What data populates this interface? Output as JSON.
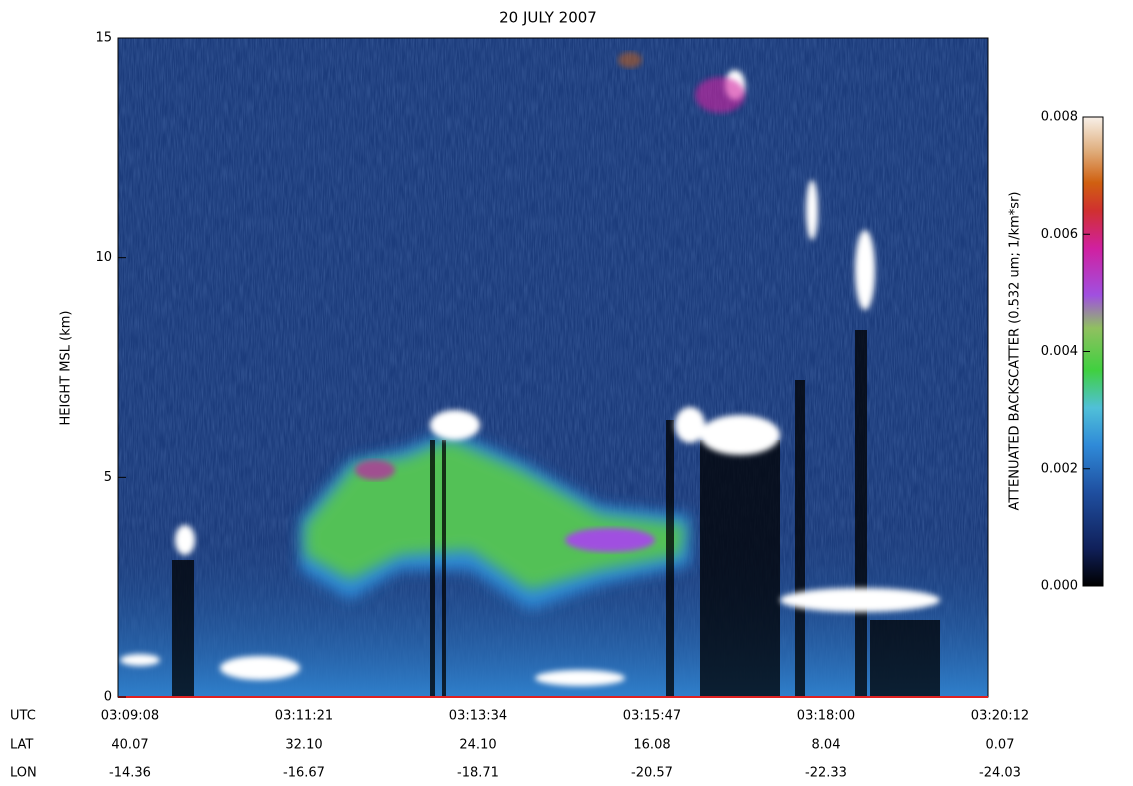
{
  "chart_data": {
    "type": "heatmap",
    "title": "20 JULY 2007",
    "y_label": "HEIGHT MSL (km)",
    "ylim": [
      0,
      15
    ],
    "yticks": [
      0,
      5,
      10,
      15
    ],
    "x_rows": [
      {
        "name": "UTC",
        "labels": [
          "03:09:08",
          "03:11:21",
          "03:13:34",
          "03:15:47",
          "03:18:00",
          "03:20:12"
        ]
      },
      {
        "name": "LAT",
        "labels": [
          "40.07",
          "32.10",
          "24.10",
          "16.08",
          "8.04",
          "0.07"
        ]
      },
      {
        "name": "LON",
        "labels": [
          "-14.36",
          "-16.67",
          "-18.71",
          "-20.57",
          "-22.33",
          "-24.03"
        ]
      }
    ],
    "colorbar": {
      "label": "ATTENUATED BACKSCATTER (0.532 um; 1/km*sr)",
      "lim": [
        0,
        0.008
      ],
      "ticks": [
        {
          "value": 0,
          "label": "0.000"
        },
        0.002,
        0.004,
        0.006,
        0.008
      ]
    }
  }
}
